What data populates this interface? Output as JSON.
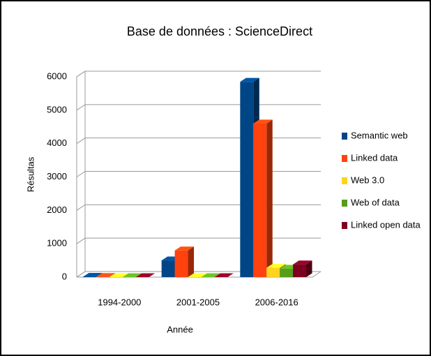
{
  "chart_data": {
    "type": "bar3d",
    "title": "Base de données : ScienceDirect",
    "x_label": "Année",
    "y_label": "Résultas",
    "categories": [
      "1994-2000",
      "2001-2005",
      "2006-2016"
    ],
    "series": [
      {
        "name": "Semantic web",
        "color": "#004586",
        "values": [
          10,
          500,
          5850
        ]
      },
      {
        "name": "Linked data",
        "color": "#ff420e",
        "values": [
          5,
          800,
          4600
        ]
      },
      {
        "name": "Web 3.0",
        "color": "#ffd320",
        "values": [
          0,
          0,
          280
        ]
      },
      {
        "name": "Web of data",
        "color": "#579d1c",
        "values": [
          0,
          0,
          250
        ]
      },
      {
        "name": "Linked open data",
        "color": "#7e0021",
        "values": [
          0,
          0,
          380
        ]
      }
    ],
    "ylim": [
      0,
      6000
    ],
    "yticks": [
      0,
      1000,
      2000,
      3000,
      4000,
      5000,
      6000
    ],
    "grid": true,
    "legend": "right"
  }
}
